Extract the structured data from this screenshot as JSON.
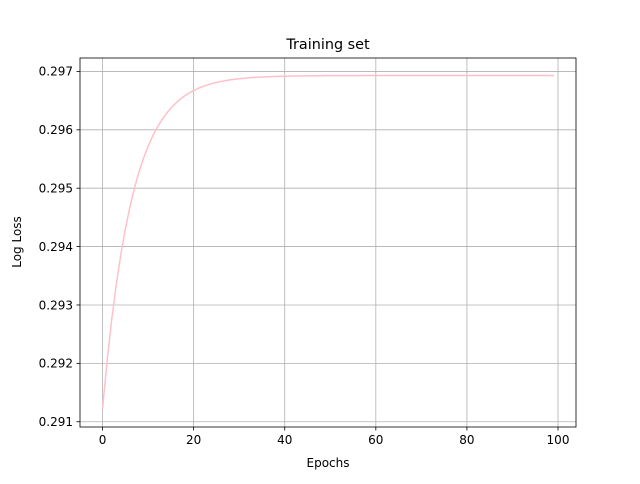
{
  "chart_data": {
    "type": "line",
    "title": "Training set",
    "xlabel": "Epochs",
    "ylabel": "Log Loss",
    "xlim": [
      -4.95,
      103.95
    ],
    "ylim": [
      0.29091,
      0.29723
    ],
    "grid": true,
    "x_ticks": [
      0,
      20,
      40,
      60,
      80,
      100
    ],
    "x_tick_labels": [
      "0",
      "20",
      "40",
      "60",
      "80",
      "100"
    ],
    "y_ticks": [
      0.291,
      0.292,
      0.293,
      0.294,
      0.295,
      0.296,
      0.297
    ],
    "y_tick_labels": [
      "0.291",
      "0.292",
      "0.293",
      "0.294",
      "0.295",
      "0.296",
      "0.297"
    ],
    "series": [
      {
        "name": "Training set",
        "color": "#ffc0cb",
        "model": {
          "kind": "exponential-saturation",
          "start": 0.29122,
          "asymptote": 0.29693,
          "rate": 0.155
        },
        "x_range": [
          0,
          99
        ],
        "key_points": [
          {
            "x": 0,
            "y": 0.29122
          },
          {
            "x": 5,
            "y": 0.2939
          },
          {
            "x": 10,
            "y": 0.2955
          },
          {
            "x": 15,
            "y": 0.2963
          },
          {
            "x": 20,
            "y": 0.2967
          },
          {
            "x": 30,
            "y": 0.29688
          },
          {
            "x": 40,
            "y": 0.29692
          },
          {
            "x": 60,
            "y": 0.29693
          },
          {
            "x": 99,
            "y": 0.29693
          }
        ]
      }
    ]
  }
}
